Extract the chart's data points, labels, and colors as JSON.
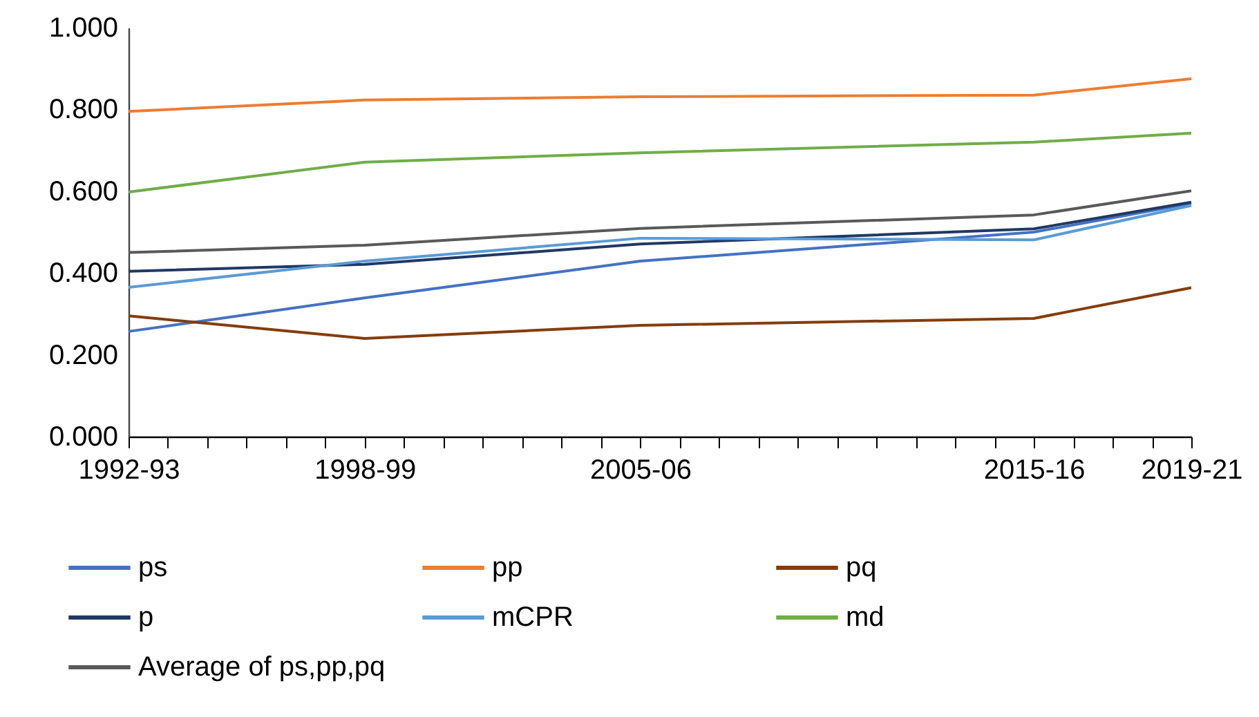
{
  "chart_data": {
    "type": "line",
    "categories": [
      "1992-93",
      null,
      null,
      null,
      null,
      null,
      "1998-99",
      null,
      null,
      null,
      null,
      null,
      null,
      "2005-06",
      null,
      null,
      null,
      null,
      null,
      null,
      null,
      null,
      null,
      "2015-16",
      null,
      null,
      null,
      "2019-21"
    ],
    "ylim": [
      0,
      1
    ],
    "yticks": [
      {
        "value": 0,
        "label": "0.000"
      },
      {
        "value": 0.2,
        "label": "0.200"
      },
      {
        "value": 0.4,
        "label": "0.400"
      },
      {
        "value": 0.6,
        "label": "0.600"
      },
      {
        "value": 0.8,
        "label": "0.800"
      },
      {
        "value": 1,
        "label": "1.000"
      }
    ],
    "grid": false,
    "legend": "bottom",
    "series": [
      {
        "name": "ps",
        "color": "#4472c4",
        "values": [
          0.257,
          null,
          null,
          null,
          null,
          null,
          0.339,
          null,
          null,
          null,
          null,
          null,
          null,
          0.429,
          null,
          null,
          null,
          null,
          null,
          null,
          null,
          null,
          null,
          0.5,
          null,
          null,
          null,
          0.57
        ]
      },
      {
        "name": "pp",
        "color": "#ed7d31",
        "values": [
          0.795,
          null,
          null,
          null,
          null,
          null,
          0.823,
          null,
          null,
          null,
          null,
          null,
          null,
          0.831,
          null,
          null,
          null,
          null,
          null,
          null,
          null,
          null,
          null,
          0.835,
          null,
          null,
          null,
          0.875
        ]
      },
      {
        "name": "pq",
        "color": "#843c0c",
        "values": [
          0.295,
          null,
          null,
          null,
          null,
          null,
          0.24,
          null,
          null,
          null,
          null,
          null,
          null,
          0.272,
          null,
          null,
          null,
          null,
          null,
          null,
          null,
          null,
          null,
          0.289,
          null,
          null,
          null,
          0.364
        ]
      },
      {
        "name": "p",
        "color": "#203864",
        "values": [
          0.404,
          null,
          null,
          null,
          null,
          null,
          0.421,
          null,
          null,
          null,
          null,
          null,
          null,
          0.471,
          null,
          null,
          null,
          null,
          null,
          null,
          null,
          null,
          null,
          0.508,
          null,
          null,
          null,
          0.573
        ]
      },
      {
        "name": "mCPR",
        "color": "#5b9bd5",
        "values": [
          0.365,
          null,
          null,
          null,
          null,
          null,
          0.429,
          null,
          null,
          null,
          null,
          null,
          null,
          0.485,
          null,
          null,
          null,
          null,
          null,
          null,
          null,
          null,
          null,
          0.481,
          null,
          null,
          null,
          0.565
        ]
      },
      {
        "name": "md",
        "color": "#70ad47",
        "values": [
          0.598,
          null,
          null,
          null,
          null,
          null,
          0.671,
          null,
          null,
          null,
          null,
          null,
          null,
          0.694,
          null,
          null,
          null,
          null,
          null,
          null,
          null,
          null,
          null,
          0.72,
          null,
          null,
          null,
          0.742
        ]
      },
      {
        "name": "Average of ps,pp,pq",
        "color": "#595959",
        "values": [
          0.45,
          null,
          null,
          null,
          null,
          null,
          0.468,
          null,
          null,
          null,
          null,
          null,
          null,
          0.509,
          null,
          null,
          null,
          null,
          null,
          null,
          null,
          null,
          null,
          0.542,
          null,
          null,
          null,
          0.601
        ]
      }
    ]
  }
}
